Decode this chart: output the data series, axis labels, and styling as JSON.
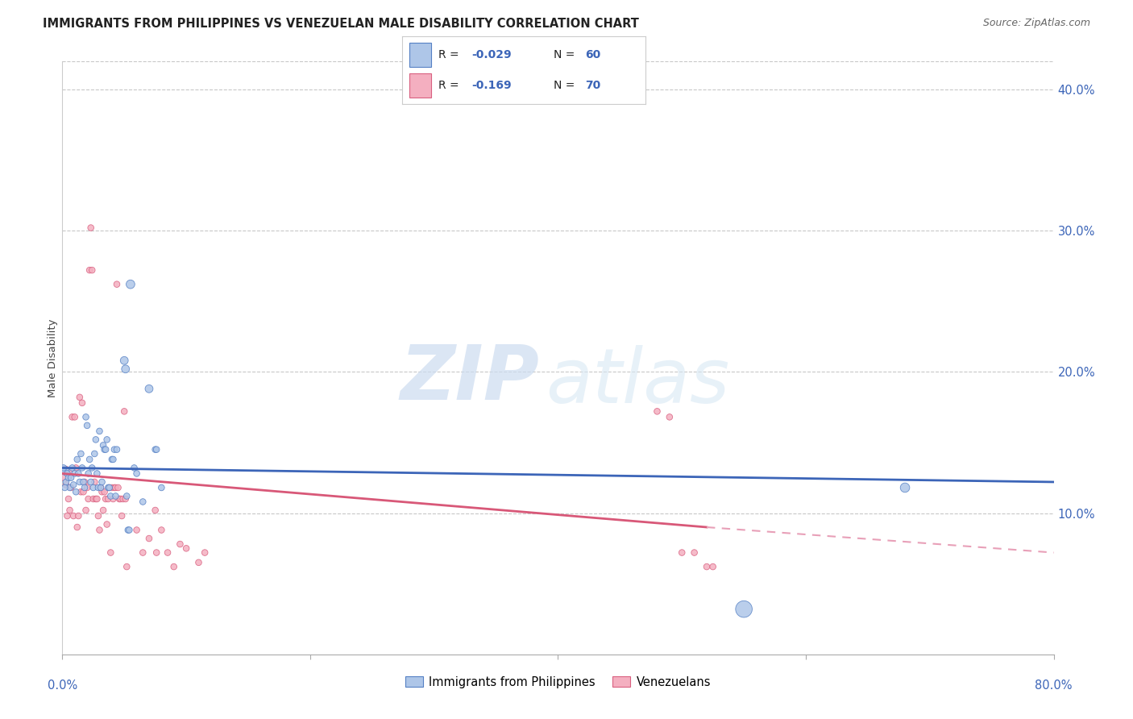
{
  "title": "IMMIGRANTS FROM PHILIPPINES VS VENEZUELAN MALE DISABILITY CORRELATION CHART",
  "source": "Source: ZipAtlas.com",
  "ylabel": "Male Disability",
  "legend_label_blue": "Immigrants from Philippines",
  "legend_label_pink": "Venezuelans",
  "watermark_zip": "ZIP",
  "watermark_atlas": "atlas",
  "yticks_right": [
    "40.0%",
    "30.0%",
    "20.0%",
    "10.0%"
  ],
  "yticks_right_vals": [
    0.4,
    0.3,
    0.2,
    0.1
  ],
  "blue_scatter": [
    [
      0.002,
      0.13
    ],
    [
      0.003,
      0.122
    ],
    [
      0.004,
      0.128
    ],
    [
      0.005,
      0.125
    ],
    [
      0.006,
      0.118
    ],
    [
      0.007,
      0.125
    ],
    [
      0.008,
      0.132
    ],
    [
      0.009,
      0.12
    ],
    [
      0.01,
      0.128
    ],
    [
      0.011,
      0.115
    ],
    [
      0.012,
      0.138
    ],
    [
      0.013,
      0.128
    ],
    [
      0.014,
      0.122
    ],
    [
      0.015,
      0.142
    ],
    [
      0.016,
      0.132
    ],
    [
      0.017,
      0.122
    ],
    [
      0.018,
      0.118
    ],
    [
      0.019,
      0.168
    ],
    [
      0.02,
      0.162
    ],
    [
      0.021,
      0.128
    ],
    [
      0.022,
      0.138
    ],
    [
      0.023,
      0.122
    ],
    [
      0.024,
      0.132
    ],
    [
      0.025,
      0.118
    ],
    [
      0.026,
      0.142
    ],
    [
      0.027,
      0.152
    ],
    [
      0.028,
      0.128
    ],
    [
      0.029,
      0.118
    ],
    [
      0.03,
      0.158
    ],
    [
      0.031,
      0.118
    ],
    [
      0.032,
      0.122
    ],
    [
      0.033,
      0.148
    ],
    [
      0.034,
      0.145
    ],
    [
      0.035,
      0.145
    ],
    [
      0.036,
      0.152
    ],
    [
      0.037,
      0.118
    ],
    [
      0.038,
      0.118
    ],
    [
      0.039,
      0.112
    ],
    [
      0.04,
      0.138
    ],
    [
      0.041,
      0.138
    ],
    [
      0.042,
      0.145
    ],
    [
      0.043,
      0.112
    ],
    [
      0.044,
      0.145
    ],
    [
      0.05,
      0.208
    ],
    [
      0.051,
      0.202
    ],
    [
      0.052,
      0.112
    ],
    [
      0.053,
      0.088
    ],
    [
      0.054,
      0.088
    ],
    [
      0.055,
      0.262
    ],
    [
      0.058,
      0.132
    ],
    [
      0.06,
      0.128
    ],
    [
      0.065,
      0.108
    ],
    [
      0.07,
      0.188
    ],
    [
      0.075,
      0.145
    ],
    [
      0.076,
      0.145
    ],
    [
      0.08,
      0.118
    ],
    [
      0.55,
      0.032
    ],
    [
      0.68,
      0.118
    ],
    [
      0.001,
      0.132
    ],
    [
      0.002,
      0.118
    ]
  ],
  "blue_sizes": [
    60,
    30,
    30,
    30,
    30,
    30,
    30,
    30,
    30,
    30,
    30,
    30,
    30,
    30,
    30,
    30,
    30,
    30,
    30,
    30,
    30,
    30,
    30,
    30,
    30,
    30,
    30,
    30,
    30,
    30,
    30,
    30,
    30,
    30,
    30,
    30,
    30,
    30,
    30,
    30,
    30,
    30,
    30,
    50,
    50,
    30,
    30,
    30,
    60,
    30,
    30,
    30,
    50,
    30,
    30,
    30,
    220,
    70,
    30,
    30
  ],
  "pink_scatter": [
    [
      0.001,
      0.13
    ],
    [
      0.002,
      0.128
    ],
    [
      0.003,
      0.12
    ],
    [
      0.004,
      0.098
    ],
    [
      0.005,
      0.11
    ],
    [
      0.006,
      0.102
    ],
    [
      0.007,
      0.118
    ],
    [
      0.008,
      0.168
    ],
    [
      0.009,
      0.098
    ],
    [
      0.01,
      0.168
    ],
    [
      0.011,
      0.132
    ],
    [
      0.012,
      0.09
    ],
    [
      0.013,
      0.098
    ],
    [
      0.014,
      0.182
    ],
    [
      0.015,
      0.115
    ],
    [
      0.016,
      0.178
    ],
    [
      0.017,
      0.115
    ],
    [
      0.018,
      0.122
    ],
    [
      0.019,
      0.102
    ],
    [
      0.02,
      0.118
    ],
    [
      0.021,
      0.11
    ],
    [
      0.022,
      0.272
    ],
    [
      0.023,
      0.302
    ],
    [
      0.024,
      0.272
    ],
    [
      0.025,
      0.11
    ],
    [
      0.026,
      0.122
    ],
    [
      0.027,
      0.11
    ],
    [
      0.028,
      0.11
    ],
    [
      0.029,
      0.098
    ],
    [
      0.03,
      0.088
    ],
    [
      0.031,
      0.118
    ],
    [
      0.032,
      0.115
    ],
    [
      0.033,
      0.102
    ],
    [
      0.034,
      0.115
    ],
    [
      0.035,
      0.11
    ],
    [
      0.036,
      0.092
    ],
    [
      0.037,
      0.11
    ],
    [
      0.038,
      0.118
    ],
    [
      0.039,
      0.072
    ],
    [
      0.04,
      0.118
    ],
    [
      0.041,
      0.11
    ],
    [
      0.042,
      0.118
    ],
    [
      0.043,
      0.118
    ],
    [
      0.044,
      0.262
    ],
    [
      0.045,
      0.118
    ],
    [
      0.046,
      0.11
    ],
    [
      0.047,
      0.11
    ],
    [
      0.048,
      0.098
    ],
    [
      0.049,
      0.11
    ],
    [
      0.05,
      0.172
    ],
    [
      0.051,
      0.11
    ],
    [
      0.052,
      0.062
    ],
    [
      0.06,
      0.088
    ],
    [
      0.065,
      0.072
    ],
    [
      0.07,
      0.082
    ],
    [
      0.075,
      0.102
    ],
    [
      0.076,
      0.072
    ],
    [
      0.08,
      0.088
    ],
    [
      0.085,
      0.072
    ],
    [
      0.09,
      0.062
    ],
    [
      0.095,
      0.078
    ],
    [
      0.1,
      0.075
    ],
    [
      0.11,
      0.065
    ],
    [
      0.115,
      0.072
    ],
    [
      0.48,
      0.172
    ],
    [
      0.49,
      0.168
    ],
    [
      0.5,
      0.072
    ],
    [
      0.51,
      0.072
    ],
    [
      0.52,
      0.062
    ],
    [
      0.525,
      0.062
    ]
  ],
  "pink_sizes": [
    30,
    180,
    30,
    30,
    30,
    30,
    30,
    30,
    30,
    30,
    30,
    30,
    30,
    30,
    30,
    30,
    30,
    30,
    30,
    30,
    30,
    30,
    30,
    30,
    30,
    30,
    30,
    30,
    30,
    30,
    30,
    30,
    30,
    30,
    30,
    30,
    30,
    30,
    30,
    30,
    30,
    30,
    30,
    30,
    30,
    30,
    30,
    30,
    30,
    30,
    30,
    30,
    30,
    30,
    30,
    30,
    30,
    30,
    30,
    30,
    30,
    30,
    30,
    30,
    30,
    30,
    30,
    30,
    30,
    30
  ],
  "blue_color": "#aec6e8",
  "pink_color": "#f4afc0",
  "blue_edge_color": "#5580c4",
  "pink_edge_color": "#d96080",
  "blue_line_color": "#3c65b8",
  "pink_line_color": "#d85878",
  "pink_dash_color": "#e8a0b8",
  "xlim": [
    0.0,
    0.8
  ],
  "ylim": [
    0.0,
    0.42
  ],
  "title_fontsize": 10.5,
  "source_fontsize": 9,
  "blue_trend_x0": 0.0,
  "blue_trend_y0": 0.132,
  "blue_trend_x1": 0.8,
  "blue_trend_y1": 0.122,
  "pink_trend_x0": 0.0,
  "pink_trend_y0": 0.128,
  "pink_trend_solid_x1": 0.52,
  "pink_trend_solid_y1": 0.09,
  "pink_trend_dash_x1": 0.8,
  "pink_trend_dash_y1": 0.072
}
